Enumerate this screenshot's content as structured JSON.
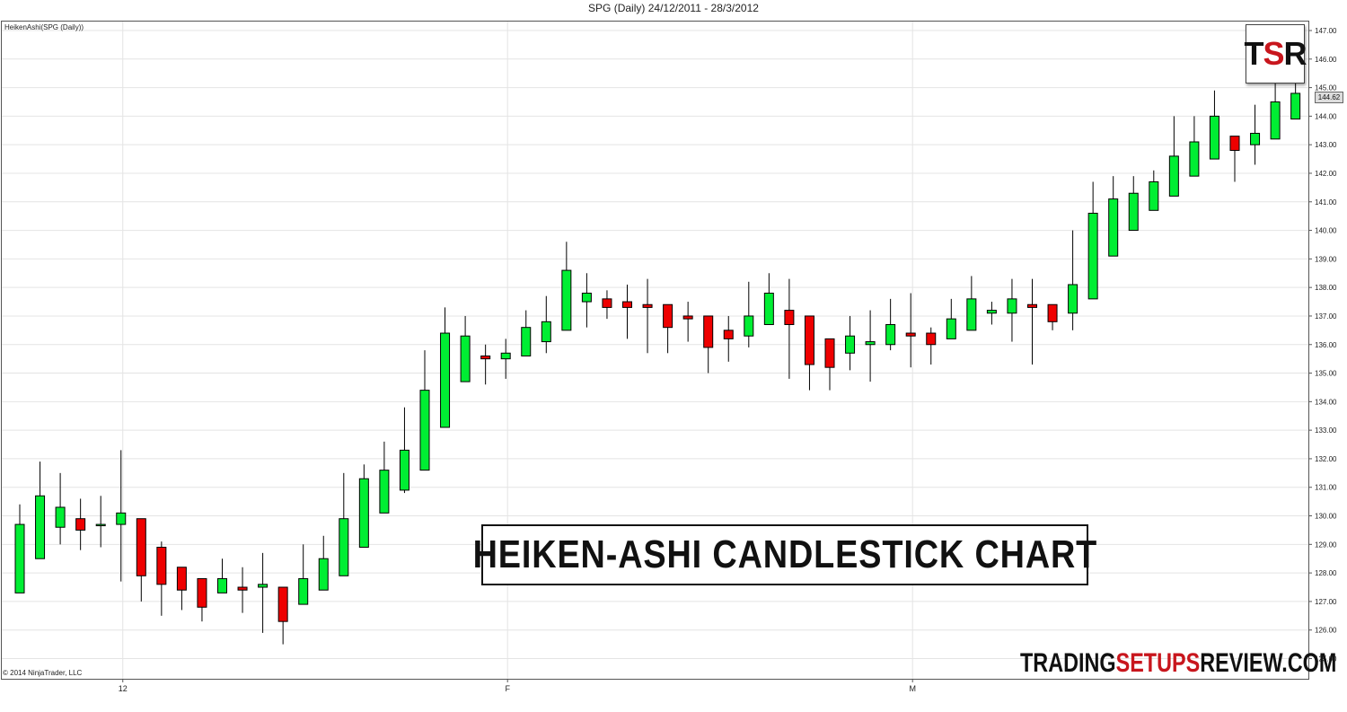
{
  "title": "SPG (Daily)  24/12/2011 - 28/3/2012",
  "indicator_label": "HeikenAshi(SPG (Daily))",
  "copyright": "© 2014 NinjaTrader, LLC",
  "banner": "HEIKEN-ASHI CANDLESTICK CHART",
  "logo": {
    "t": "T",
    "s": "S",
    "r": "R"
  },
  "watermark": {
    "part1": "TRADING",
    "part2": "SETUPS",
    "part3": "REVIEW.COM"
  },
  "last_price": "144.62",
  "colors": {
    "up": "#00ee33",
    "down": "#ee0000",
    "wick": "#000000",
    "grid": "#e4e4e4",
    "accent": "#c8161d"
  },
  "chart_data": {
    "type": "candlestick",
    "title": "SPG (Daily)  24/12/2011 - 28/3/2012",
    "ylim": [
      124.5,
      147.2
    ],
    "y_ticks": [
      "125.00",
      "126.00",
      "127.00",
      "128.00",
      "129.00",
      "130.00",
      "131.00",
      "132.00",
      "133.00",
      "134.00",
      "135.00",
      "136.00",
      "137.00",
      "138.00",
      "139.00",
      "140.00",
      "141.00",
      "142.00",
      "143.00",
      "144.00",
      "145.00",
      "146.00",
      "147.00"
    ],
    "x_ticks": [
      {
        "label": "12",
        "index": 5
      },
      {
        "label": "F",
        "index": 24
      },
      {
        "label": "M",
        "index": 44
      }
    ],
    "grid": true,
    "candles": [
      {
        "o": 127.3,
        "h": 130.4,
        "l": 127.3,
        "c": 129.7
      },
      {
        "o": 128.5,
        "h": 131.9,
        "l": 128.5,
        "c": 130.7
      },
      {
        "o": 129.6,
        "h": 131.5,
        "l": 129.0,
        "c": 130.3
      },
      {
        "o": 129.9,
        "h": 130.6,
        "l": 128.8,
        "c": 129.5
      },
      {
        "o": 129.7,
        "h": 130.7,
        "l": 128.9,
        "c": 129.7
      },
      {
        "o": 129.7,
        "h": 132.3,
        "l": 127.7,
        "c": 130.1
      },
      {
        "o": 129.9,
        "h": 129.9,
        "l": 127.0,
        "c": 127.9
      },
      {
        "o": 128.9,
        "h": 129.1,
        "l": 126.5,
        "c": 127.6
      },
      {
        "o": 128.2,
        "h": 128.2,
        "l": 126.7,
        "c": 127.4
      },
      {
        "o": 127.8,
        "h": 127.8,
        "l": 126.3,
        "c": 126.8
      },
      {
        "o": 127.3,
        "h": 128.5,
        "l": 127.3,
        "c": 127.8
      },
      {
        "o": 127.5,
        "h": 128.2,
        "l": 126.6,
        "c": 127.4
      },
      {
        "o": 127.5,
        "h": 128.7,
        "l": 125.9,
        "c": 127.6
      },
      {
        "o": 127.5,
        "h": 127.5,
        "l": 125.5,
        "c": 126.3
      },
      {
        "o": 126.9,
        "h": 129.0,
        "l": 126.9,
        "c": 127.8
      },
      {
        "o": 127.4,
        "h": 129.3,
        "l": 127.4,
        "c": 128.5
      },
      {
        "o": 127.9,
        "h": 131.5,
        "l": 127.9,
        "c": 129.9
      },
      {
        "o": 128.9,
        "h": 131.8,
        "l": 128.9,
        "c": 131.3
      },
      {
        "o": 130.1,
        "h": 132.6,
        "l": 130.1,
        "c": 131.6
      },
      {
        "o": 130.9,
        "h": 133.8,
        "l": 130.8,
        "c": 132.3
      },
      {
        "o": 131.6,
        "h": 135.8,
        "l": 131.6,
        "c": 134.4
      },
      {
        "o": 133.1,
        "h": 137.3,
        "l": 133.1,
        "c": 136.4
      },
      {
        "o": 134.7,
        "h": 137.0,
        "l": 134.7,
        "c": 136.3
      },
      {
        "o": 135.6,
        "h": 136.0,
        "l": 134.6,
        "c": 135.5
      },
      {
        "o": 135.5,
        "h": 136.2,
        "l": 134.8,
        "c": 135.7
      },
      {
        "o": 135.6,
        "h": 137.2,
        "l": 135.6,
        "c": 136.6
      },
      {
        "o": 136.1,
        "h": 137.7,
        "l": 135.7,
        "c": 136.8
      },
      {
        "o": 136.5,
        "h": 139.6,
        "l": 136.5,
        "c": 138.6
      },
      {
        "o": 137.5,
        "h": 138.5,
        "l": 136.6,
        "c": 137.8
      },
      {
        "o": 137.6,
        "h": 137.9,
        "l": 136.9,
        "c": 137.3
      },
      {
        "o": 137.5,
        "h": 138.1,
        "l": 136.2,
        "c": 137.3
      },
      {
        "o": 137.4,
        "h": 138.3,
        "l": 135.7,
        "c": 137.3
      },
      {
        "o": 137.4,
        "h": 137.4,
        "l": 135.7,
        "c": 136.6
      },
      {
        "o": 137.0,
        "h": 137.5,
        "l": 136.1,
        "c": 136.9
      },
      {
        "o": 137.0,
        "h": 137.0,
        "l": 135.0,
        "c": 135.9
      },
      {
        "o": 136.5,
        "h": 137.0,
        "l": 135.4,
        "c": 136.2
      },
      {
        "o": 136.3,
        "h": 138.2,
        "l": 135.9,
        "c": 137.0
      },
      {
        "o": 136.7,
        "h": 138.5,
        "l": 136.7,
        "c": 137.8
      },
      {
        "o": 137.2,
        "h": 138.3,
        "l": 134.8,
        "c": 136.7
      },
      {
        "o": 137.0,
        "h": 137.0,
        "l": 134.4,
        "c": 135.3
      },
      {
        "o": 136.2,
        "h": 136.2,
        "l": 134.4,
        "c": 135.2
      },
      {
        "o": 135.7,
        "h": 137.0,
        "l": 135.1,
        "c": 136.3
      },
      {
        "o": 136.0,
        "h": 137.2,
        "l": 134.7,
        "c": 136.1
      },
      {
        "o": 136.0,
        "h": 137.6,
        "l": 135.8,
        "c": 136.7
      },
      {
        "o": 136.4,
        "h": 137.8,
        "l": 135.2,
        "c": 136.3
      },
      {
        "o": 136.4,
        "h": 136.6,
        "l": 135.3,
        "c": 136.0
      },
      {
        "o": 136.2,
        "h": 137.6,
        "l": 136.2,
        "c": 136.9
      },
      {
        "o": 136.5,
        "h": 138.4,
        "l": 136.5,
        "c": 137.6
      },
      {
        "o": 137.1,
        "h": 137.5,
        "l": 136.7,
        "c": 137.2
      },
      {
        "o": 137.1,
        "h": 138.3,
        "l": 136.1,
        "c": 137.6
      },
      {
        "o": 137.4,
        "h": 138.3,
        "l": 135.3,
        "c": 137.3
      },
      {
        "o": 137.4,
        "h": 137.4,
        "l": 136.5,
        "c": 136.8
      },
      {
        "o": 137.1,
        "h": 140.0,
        "l": 136.5,
        "c": 138.1
      },
      {
        "o": 137.6,
        "h": 141.7,
        "l": 137.6,
        "c": 140.6
      },
      {
        "o": 139.1,
        "h": 141.9,
        "l": 139.1,
        "c": 141.1
      },
      {
        "o": 140.0,
        "h": 141.9,
        "l": 140.0,
        "c": 141.3
      },
      {
        "o": 140.7,
        "h": 142.1,
        "l": 140.7,
        "c": 141.7
      },
      {
        "o": 141.2,
        "h": 144.0,
        "l": 141.2,
        "c": 142.6
      },
      {
        "o": 141.9,
        "h": 144.0,
        "l": 141.9,
        "c": 143.1
      },
      {
        "o": 142.5,
        "h": 144.9,
        "l": 142.5,
        "c": 144.0
      },
      {
        "o": 143.3,
        "h": 143.3,
        "l": 141.7,
        "c": 142.8
      },
      {
        "o": 143.0,
        "h": 144.4,
        "l": 142.3,
        "c": 143.4
      },
      {
        "o": 143.2,
        "h": 145.2,
        "l": 143.2,
        "c": 144.5
      },
      {
        "o": 143.9,
        "h": 145.4,
        "l": 143.9,
        "c": 144.8
      }
    ]
  }
}
